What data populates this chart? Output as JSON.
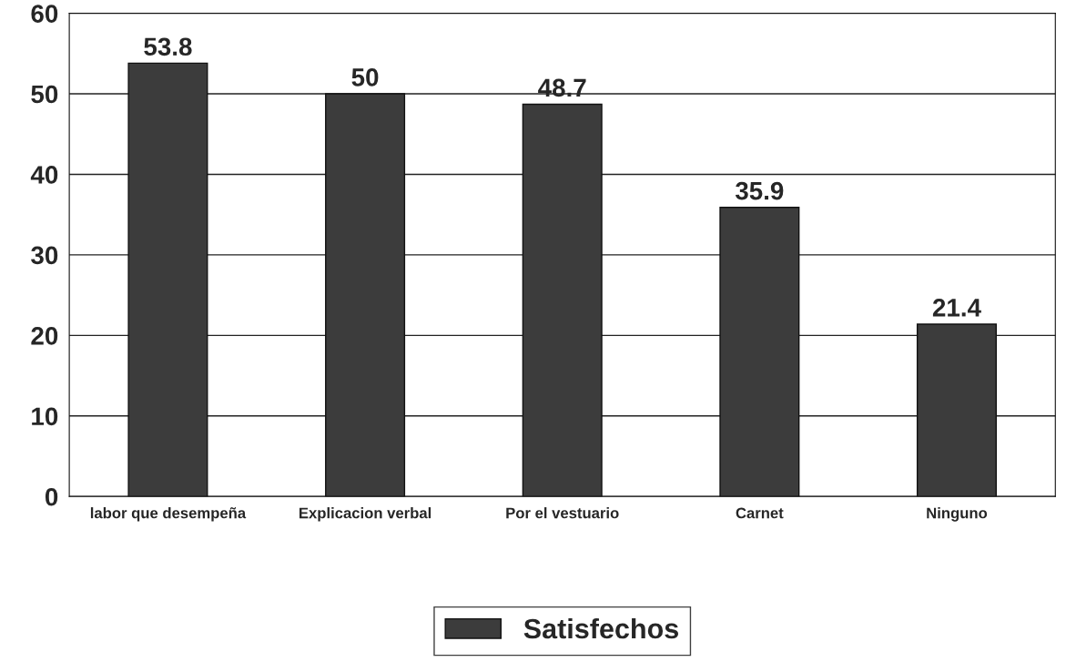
{
  "chart_data": {
    "type": "bar",
    "categories": [
      "labor que desempeña",
      "Explicacion verbal",
      "Por el vestuario",
      "Carnet",
      "Ninguno"
    ],
    "series": [
      {
        "name": "Satisfechos",
        "color": "#3c3c3c",
        "values": [
          53.8,
          50,
          48.7,
          35.9,
          21.4
        ]
      }
    ],
    "ylim": [
      0,
      60
    ],
    "yticks": [
      0,
      10,
      20,
      30,
      40,
      50,
      60
    ],
    "grid": "y",
    "legend": "bottom",
    "data_labels": true
  }
}
